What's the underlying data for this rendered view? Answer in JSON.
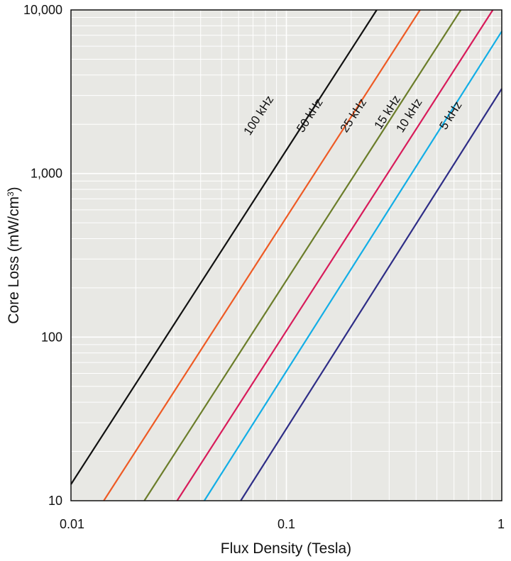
{
  "chart_data": {
    "type": "line",
    "xlabel": "Flux Density (Tesla)",
    "ylabel": "Core Loss (mW/cm",
    "ylabel_superscript": "3",
    "ylabel_suffix": ")",
    "x_scale": "log",
    "y_scale": "log",
    "xlim": [
      0.01,
      1
    ],
    "ylim": [
      10,
      10000
    ],
    "x_ticks": [
      {
        "value": 0.01,
        "label": "0.01"
      },
      {
        "value": 0.1,
        "label": "0.1"
      },
      {
        "value": 1,
        "label": "1"
      }
    ],
    "y_ticks": [
      {
        "value": 10,
        "label": "10"
      },
      {
        "value": 100,
        "label": "100"
      },
      {
        "value": 1000,
        "label": "1,000"
      },
      {
        "value": 10000,
        "label": "10,000"
      }
    ],
    "grid": true,
    "plot_background": "#e8e8e4",
    "grid_color": "#ffffff",
    "series": [
      {
        "name": "100 kHz",
        "color": "#111111",
        "points": [
          [
            0.01,
            12.6
          ],
          [
            0.2627,
            10000
          ]
        ],
        "label_at": [
          0.077,
          2200
        ]
      },
      {
        "name": "50 kHz",
        "color": "#ee5a24",
        "points": [
          [
            0.0142,
            10
          ],
          [
            0.4173,
            10000
          ]
        ],
        "label_at": [
          0.133,
          2200
        ]
      },
      {
        "name": "25 kHz",
        "color": "#6b7d2a",
        "points": [
          [
            0.0219,
            10
          ],
          [
            0.6457,
            10000
          ]
        ],
        "label_at": [
          0.212,
          2200
        ]
      },
      {
        "name": "15 kHz",
        "color": "#d81b5a",
        "points": [
          [
            0.0311,
            10
          ],
          [
            0.9089,
            10000
          ]
        ],
        "label_at": [
          0.305,
          2300
        ]
      },
      {
        "name": "10 kHz",
        "color": "#12aee6",
        "points": [
          [
            0.0416,
            10
          ],
          [
            1,
            7400
          ]
        ],
        "label_at": [
          0.385,
          2200
        ]
      },
      {
        "name": "5 kHz",
        "color": "#2e2d86",
        "points": [
          [
            0.0614,
            10
          ],
          [
            1,
            3300
          ]
        ],
        "label_at": [
          0.6,
          2200
        ]
      }
    ]
  }
}
